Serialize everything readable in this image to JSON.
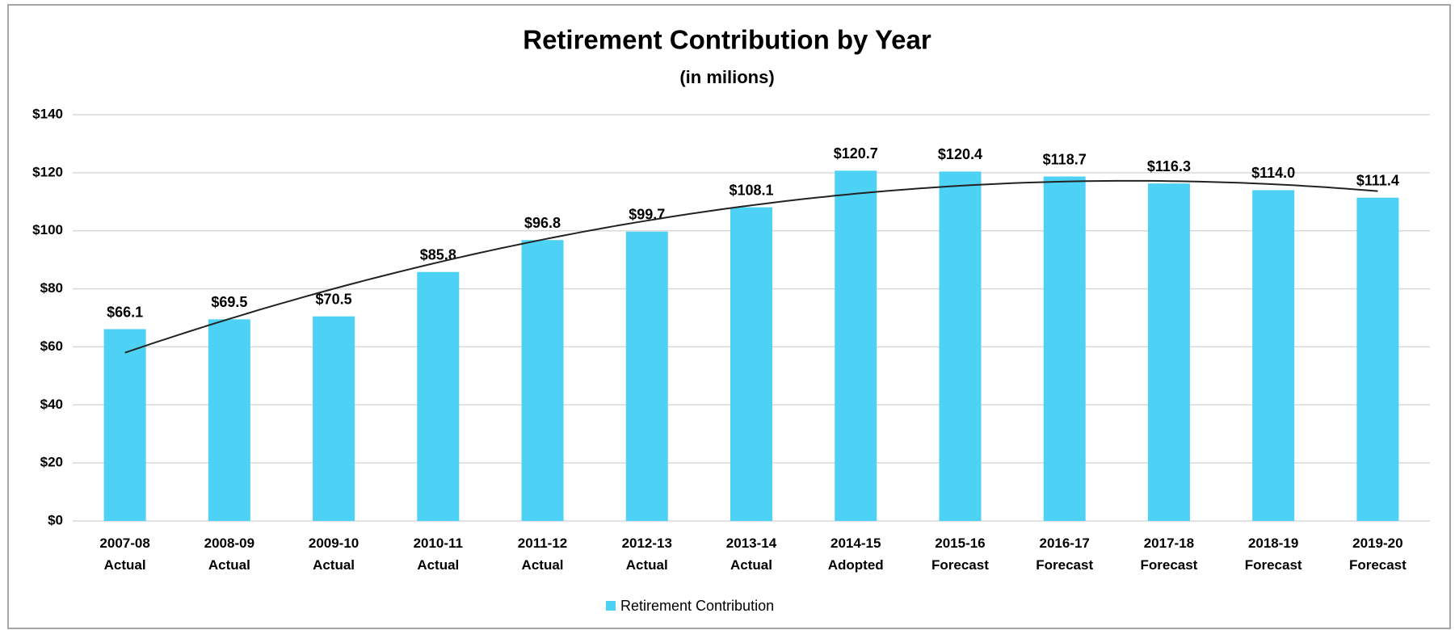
{
  "chart_data": {
    "type": "bar",
    "title": "Retirement Contribution by Year",
    "subtitle": "(in milions)",
    "categories": [
      "2007-08\nActual",
      "2008-09\nActual",
      "2009-10\nActual",
      "2010-11\nActual",
      "2011-12\nActual",
      "2012-13\nActual",
      "2013-14\nActual",
      "2014-15\nAdopted",
      "2015-16\nForecast",
      "2016-17\nForecast",
      "2017-18\nForecast",
      "2018-19\nForecast",
      "2019-20\nForecast"
    ],
    "series": [
      {
        "name": "Retirement Contribution",
        "color": "#4dd2f5",
        "values": [
          66.1,
          69.5,
          70.5,
          85.8,
          96.8,
          99.7,
          108.1,
          120.7,
          120.4,
          118.7,
          116.3,
          114.0,
          111.4
        ],
        "value_labels": [
          "$66.1",
          "$69.5",
          "$70.5",
          "$85.8",
          "$96.8",
          "$99.7",
          "$108.1",
          "$120.7",
          "$120.4",
          "$118.7",
          "$116.3",
          "$114.0",
          "$111.4"
        ]
      }
    ],
    "ylim": [
      0,
      140
    ],
    "yticks": [
      {
        "value": 0,
        "label": "$0"
      },
      {
        "value": 20,
        "label": "$20"
      },
      {
        "value": 40,
        "label": "$40"
      },
      {
        "value": 60,
        "label": "$60"
      },
      {
        "value": 80,
        "label": "$80"
      },
      {
        "value": 100,
        "label": "$100"
      },
      {
        "value": 120,
        "label": "$120"
      },
      {
        "value": 140,
        "label": "$140"
      }
    ],
    "grid": true,
    "trendline": {
      "order": 2
    },
    "legend": "bottom"
  }
}
